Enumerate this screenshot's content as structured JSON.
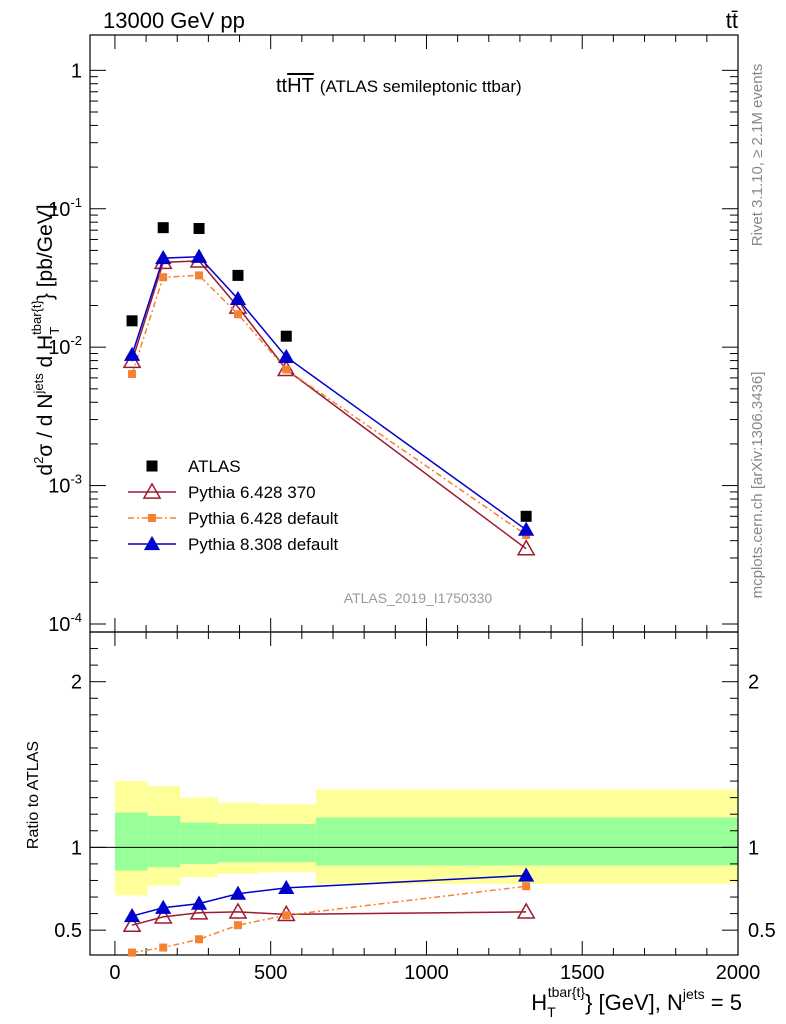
{
  "header": {
    "energy_label": "13000 GeV pp",
    "process_label": "tt̄"
  },
  "side_labels": {
    "rivet": "Rivet 3.1.10, ≥ 2.1M events",
    "mcplots": "mcplots.cern.ch [arXiv:1306.3436]"
  },
  "chart_data": [
    {
      "type": "scatter",
      "panel": "main",
      "title": "ttHT (ATLAS semileptonic ttbar)",
      "title_prefix": "tt",
      "title_overline": "HT",
      "title_suffix": "(ATLAS semileptonic ttbar)",
      "ylabel": "d²σ / d N^jets d H_T^tbar{t} [pb/GeV]",
      "yscale": "log",
      "ylim": [
        0.0001,
        1.8
      ],
      "xlim": [
        -80,
        2000
      ],
      "y_tick_labels": [
        "10^-4",
        "10^-3",
        "10^-2",
        "10^-1",
        "1"
      ],
      "watermark": "ATLAS_2019_I1750330",
      "legend_position": "lower-left",
      "series": [
        {
          "name": "ATLAS",
          "color": "#000000",
          "marker": "square",
          "x": [
            55,
            155,
            270,
            395,
            550,
            1320
          ],
          "y": [
            0.0155,
            0.073,
            0.072,
            0.033,
            0.012,
            0.0006
          ]
        },
        {
          "name": "Pythia 6.428 370",
          "color": "#9b1b30",
          "marker": "triangle-open",
          "x": [
            55,
            155,
            270,
            395,
            550,
            1320
          ],
          "y": [
            0.0079,
            0.041,
            0.042,
            0.0195,
            0.0069,
            0.00035
          ]
        },
        {
          "name": "Pythia 6.428 default",
          "color": "#f58232",
          "marker": "square-small",
          "dashed": true,
          "x": [
            55,
            155,
            270,
            395,
            550,
            1320
          ],
          "y": [
            0.0064,
            0.032,
            0.033,
            0.0173,
            0.0069,
            0.00044
          ]
        },
        {
          "name": "Pythia 8.308 default",
          "color": "#0000cc",
          "marker": "triangle",
          "x": [
            55,
            155,
            270,
            395,
            550,
            1320
          ],
          "y": [
            0.0088,
            0.044,
            0.045,
            0.0223,
            0.0085,
            0.00048
          ]
        }
      ]
    },
    {
      "type": "line",
      "panel": "ratio",
      "ylabel": "Ratio to ATLAS",
      "xlabel": "H_T^tbar{t} [GeV], N^jets = 5",
      "ylim": [
        0.35,
        2.3
      ],
      "xlim": [
        -80,
        2000
      ],
      "y_ticks": [
        0.5,
        1,
        2
      ],
      "x_ticks": [
        0,
        500,
        1000,
        1500,
        2000
      ],
      "bands": [
        {
          "x0": 0,
          "x1": 105,
          "inner": [
            0.86,
            1.21
          ],
          "outer": [
            0.71,
            1.4
          ]
        },
        {
          "x0": 105,
          "x1": 210,
          "inner": [
            0.88,
            1.19
          ],
          "outer": [
            0.77,
            1.37
          ]
        },
        {
          "x0": 210,
          "x1": 330,
          "inner": [
            0.9,
            1.15
          ],
          "outer": [
            0.82,
            1.3
          ]
        },
        {
          "x0": 330,
          "x1": 460,
          "inner": [
            0.91,
            1.14
          ],
          "outer": [
            0.84,
            1.27
          ]
        },
        {
          "x0": 460,
          "x1": 645,
          "inner": [
            0.91,
            1.14
          ],
          "outer": [
            0.85,
            1.26
          ]
        },
        {
          "x0": 645,
          "x1": 2000,
          "inner": [
            0.89,
            1.18
          ],
          "outer": [
            0.78,
            1.35
          ]
        }
      ],
      "band_colors": {
        "inner": "#99ff99",
        "outer": "#ffff99"
      },
      "reference": 1,
      "series": [
        {
          "name": "Pythia 6.428 370",
          "color": "#9b1b30",
          "marker": "triangle-open",
          "x": [
            55,
            155,
            270,
            395,
            550,
            1320
          ],
          "y": [
            0.53,
            0.58,
            0.605,
            0.61,
            0.595,
            0.61
          ]
        },
        {
          "name": "Pythia 6.428 default",
          "color": "#f58232",
          "marker": "square-small",
          "dashed": true,
          "x": [
            55,
            155,
            270,
            395,
            550,
            1320
          ],
          "y": [
            0.365,
            0.395,
            0.445,
            0.53,
            0.59,
            0.765
          ]
        },
        {
          "name": "Pythia 8.308 default",
          "color": "#0000cc",
          "marker": "triangle",
          "x": [
            55,
            155,
            270,
            395,
            550,
            1320
          ],
          "y": [
            0.585,
            0.635,
            0.66,
            0.72,
            0.755,
            0.83
          ]
        }
      ]
    }
  ]
}
